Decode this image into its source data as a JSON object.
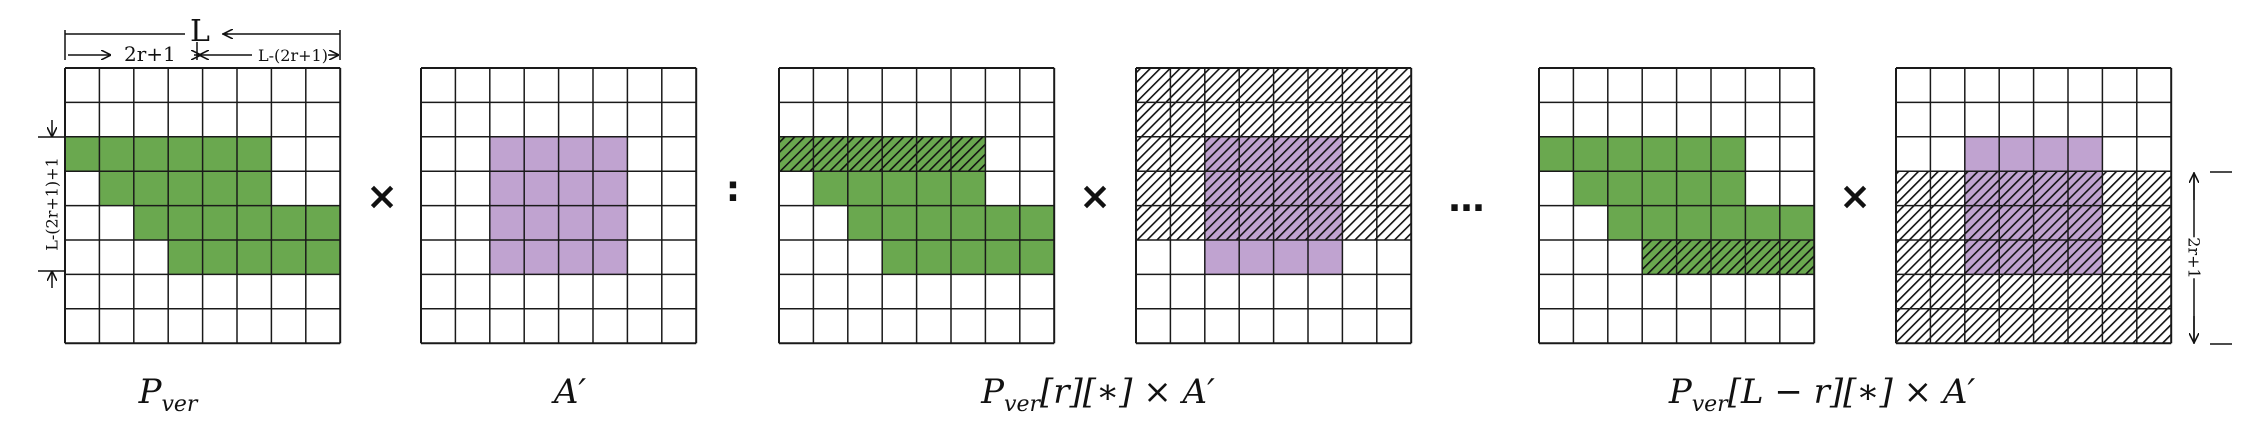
{
  "grid_size": 8,
  "colors": {
    "line": "#1a1a1a",
    "green": "#6aa84f",
    "purple": "#c0a3d0",
    "hatch_bg": "#ffffff"
  },
  "labels": {
    "L": "L",
    "two_r_plus_1": "2r+1",
    "L_minus": "L-(2r+1)",
    "L_minus_vertical": "L-(2r+1)+1",
    "right_span": "2r+1"
  },
  "operators": {
    "times": "×",
    "colon": ":",
    "ellipsis": "…"
  },
  "captions": {
    "c1_main": "P",
    "c1_sub": "ver",
    "c2": "A′",
    "c3_main": "P",
    "c3_sub": "ver",
    "c3_rest": "[r][∗] × A′",
    "c4_main": "P",
    "c4_sub": "ver",
    "c4_rest": "[L − r][∗] × A′"
  },
  "grids": [
    {
      "id": "pver",
      "green": [
        [
          2,
          0,
          5
        ],
        [
          3,
          1,
          5
        ],
        [
          4,
          2,
          7
        ],
        [
          5,
          3,
          7
        ]
      ],
      "purple": [],
      "hatch": []
    },
    {
      "id": "aprime",
      "green": [],
      "purple": [
        [
          2,
          2,
          5
        ],
        [
          3,
          2,
          5
        ],
        [
          4,
          2,
          5
        ],
        [
          5,
          2,
          5
        ]
      ],
      "hatch": []
    },
    {
      "id": "pver-r",
      "green": [
        [
          2,
          0,
          5
        ],
        [
          3,
          1,
          5
        ],
        [
          4,
          2,
          7
        ],
        [
          5,
          3,
          7
        ]
      ],
      "purple": [],
      "hatch": [
        [
          2,
          0,
          5
        ]
      ]
    },
    {
      "id": "aprime-r",
      "green": [],
      "purple": [
        [
          2,
          2,
          5
        ],
        [
          3,
          2,
          5
        ],
        [
          4,
          2,
          5
        ],
        [
          5,
          2,
          5
        ]
      ],
      "hatch": [
        [
          0,
          0,
          7
        ],
        [
          1,
          0,
          7
        ],
        [
          2,
          0,
          7
        ],
        [
          3,
          0,
          7
        ],
        [
          4,
          0,
          7
        ]
      ]
    },
    {
      "id": "pver-lr",
      "green": [
        [
          2,
          0,
          5
        ],
        [
          3,
          1,
          5
        ],
        [
          4,
          2,
          7
        ],
        [
          5,
          3,
          7
        ]
      ],
      "purple": [],
      "hatch": [
        [
          5,
          3,
          7
        ]
      ]
    },
    {
      "id": "aprime-lr",
      "green": [],
      "purple": [
        [
          2,
          2,
          5
        ],
        [
          3,
          2,
          5
        ],
        [
          4,
          2,
          5
        ],
        [
          5,
          2,
          5
        ]
      ],
      "hatch": [
        [
          3,
          0,
          7
        ],
        [
          4,
          0,
          7
        ],
        [
          5,
          0,
          7
        ],
        [
          6,
          0,
          7
        ],
        [
          7,
          0,
          7
        ]
      ]
    }
  ]
}
